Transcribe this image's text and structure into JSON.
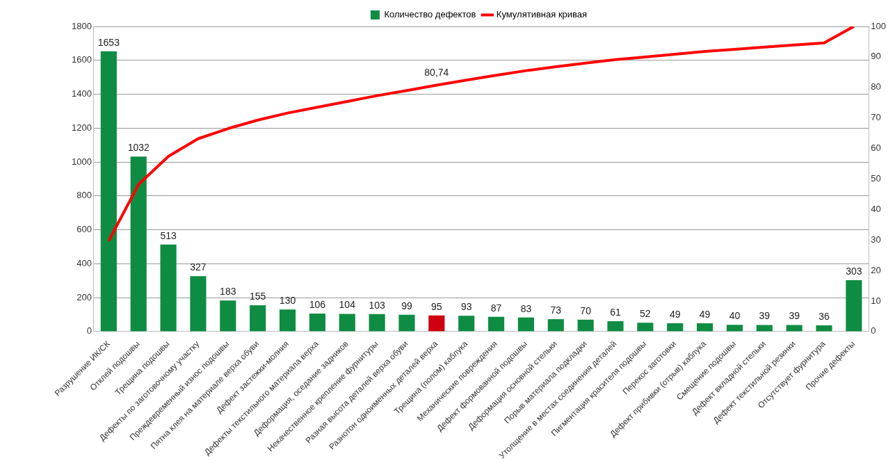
{
  "chart_data": {
    "type": "bar",
    "categories": [
      "Разрушение ИК/СК",
      "Отклей подошвы",
      "Трещина подошвы",
      "Дефекты по заготовочному участку",
      "Преждевременный износ подошвы",
      "Пятна клея на материале верха обуви",
      "Дефект застежки-молния",
      "Дефекты текстильного материала верха",
      "Деформация, оседание задников",
      "Некачественное крепление фурнитуры",
      "Разная высота деталей верха обуви",
      "Разнотон одноименных деталей верха",
      "Трещина (полом) каблука",
      "Механические повреждения",
      "Дефект формованной подошвы",
      "Деформация основной стельки",
      "Порыв материала подкладки",
      "Утолщение в местах соединения деталей",
      "Пигментация красителя подошвы",
      "Перекос заготовки",
      "Дефект прибивки (отрыв) каблука",
      "Смещение подошвы",
      "Дефект вкладной стельки",
      "Дефект текстильной резинки",
      "Отсутствует фурнитура",
      "Прочие дефекты"
    ],
    "series": [
      {
        "name": "Количество дефектов",
        "color": "#0e8c43",
        "colors": [
          "#0e8c43",
          "#0e8c43",
          "#0e8c43",
          "#0e8c43",
          "#0e8c43",
          "#0e8c43",
          "#0e8c43",
          "#0e8c43",
          "#0e8c43",
          "#0e8c43",
          "#0e8c43",
          "#d00010",
          "#0e8c43",
          "#0e8c43",
          "#0e8c43",
          "#0e8c43",
          "#0e8c43",
          "#0e8c43",
          "#0e8c43",
          "#0e8c43",
          "#0e8c43",
          "#0e8c43",
          "#0e8c43",
          "#0e8c43",
          "#0e8c43",
          "#0e8c43"
        ],
        "values": [
          1653,
          1032,
          513,
          327,
          183,
          155,
          130,
          106,
          104,
          103,
          99,
          95,
          93,
          87,
          83,
          73,
          70,
          61,
          52,
          49,
          49,
          40,
          39,
          39,
          36,
          303
        ],
        "value_labels": [
          "1653",
          "1032",
          "513",
          "327",
          "183",
          "155",
          "130",
          "106",
          "104",
          "103",
          "99",
          "95",
          "93",
          "87",
          "83",
          "73",
          "70",
          "61",
          "52",
          "49",
          "49",
          "40",
          "39",
          "39",
          "36",
          "303"
        ]
      },
      {
        "name": "Кумулятивная кривая",
        "type": "line",
        "axis": "y2",
        "color": "#ff0000",
        "values": [
          29.7,
          48.2,
          57.4,
          63.2,
          66.5,
          69.3,
          71.6,
          73.5,
          75.4,
          77.3,
          79.0,
          80.74,
          82.4,
          84.0,
          85.5,
          86.8,
          88.0,
          89.1,
          90.0,
          90.9,
          91.8,
          92.5,
          93.2,
          93.9,
          94.6,
          100
        ],
        "value_labels": [
          null,
          null,
          null,
          null,
          null,
          null,
          null,
          null,
          null,
          null,
          null,
          "80,74",
          null,
          null,
          null,
          null,
          null,
          null,
          null,
          null,
          null,
          null,
          null,
          null,
          null,
          null
        ]
      }
    ],
    "ylim": [
      0,
      1800
    ],
    "yticks": [
      0,
      200,
      400,
      600,
      800,
      1000,
      1200,
      1400,
      1600,
      1800
    ],
    "y2lim": [
      0,
      100
    ],
    "y2ticks": [
      0,
      10,
      20,
      30,
      40,
      50,
      60,
      70,
      80,
      90,
      100
    ],
    "grid": "y",
    "legend": "top",
    "marker": "none",
    "line_style": "solid"
  }
}
